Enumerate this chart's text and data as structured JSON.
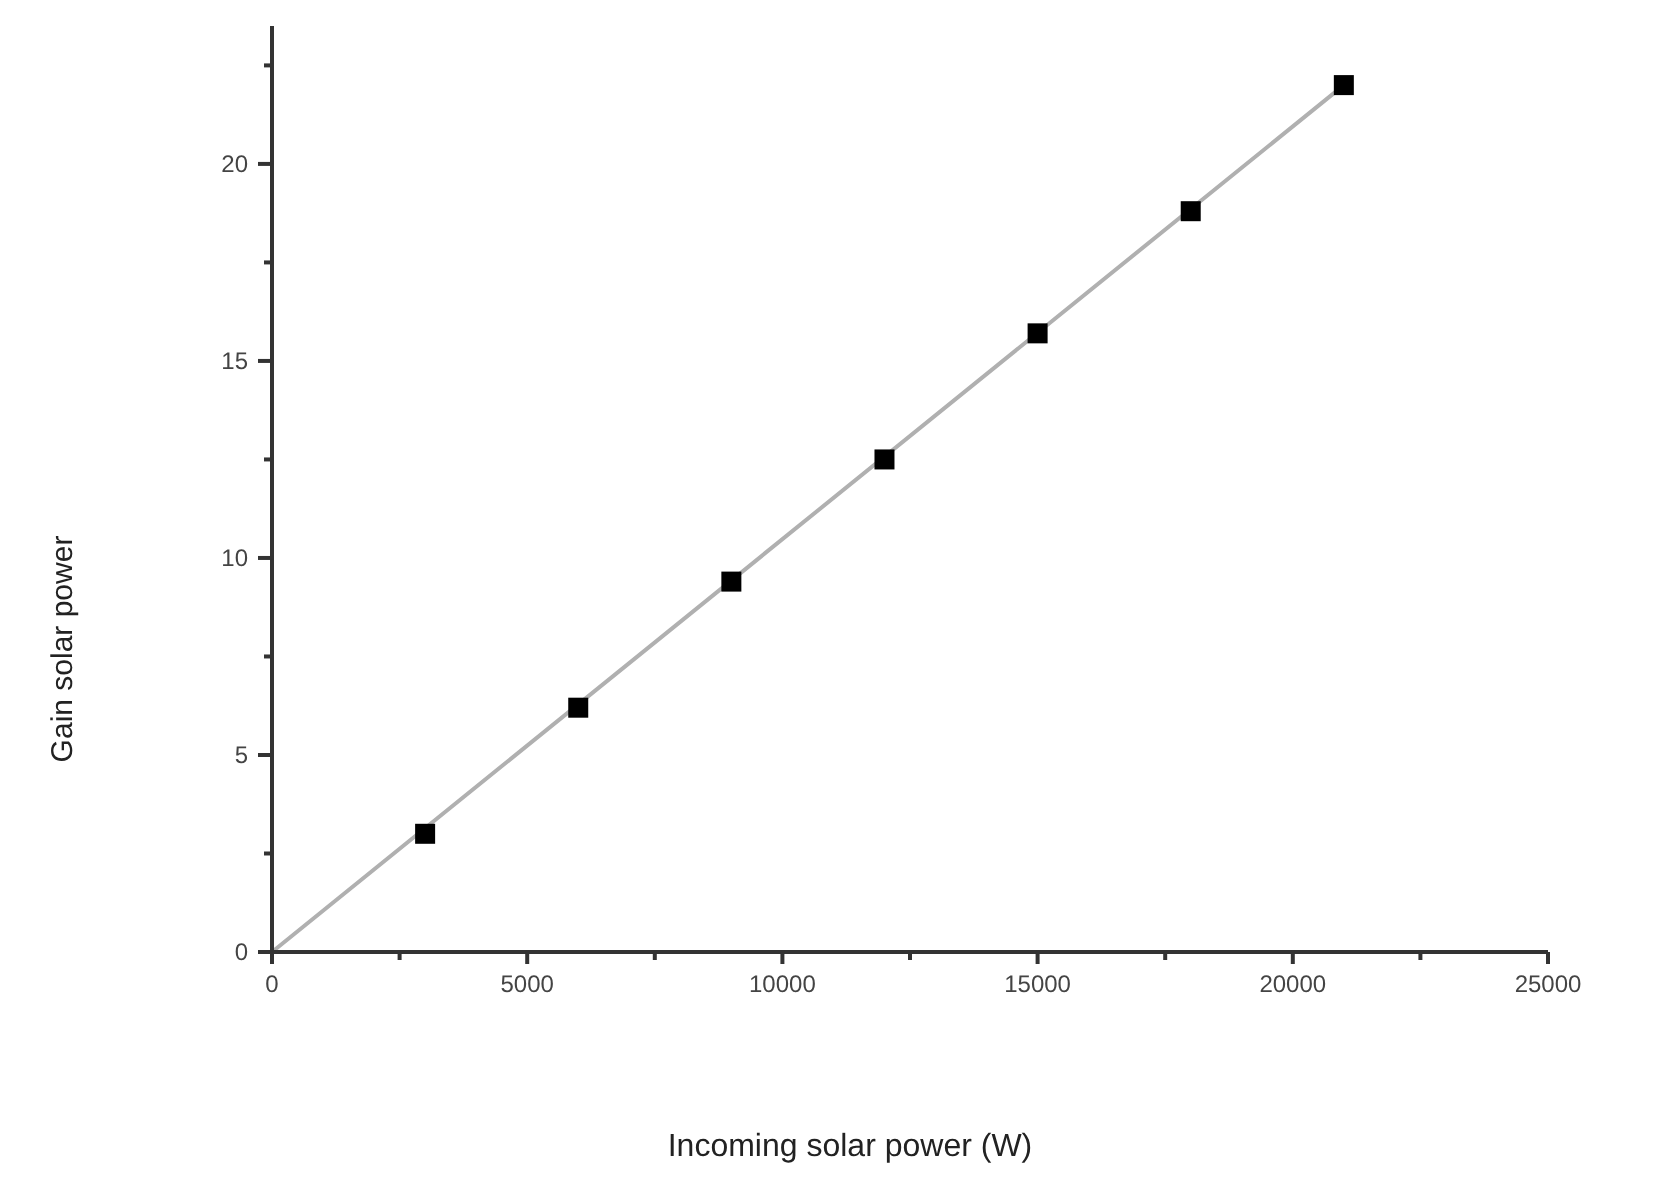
{
  "chart_data": {
    "type": "scatter",
    "xlabel": "Incoming solar power (W)",
    "ylabel": "Gain solar power",
    "xlim": [
      0,
      25000
    ],
    "ylim": [
      0,
      23.5
    ],
    "xticks": [
      0,
      {
        "value": 2500,
        "label": null
      },
      5000,
      {
        "value": 7500,
        "label": null
      },
      10000,
      {
        "value": 12500,
        "label": null
      },
      15000,
      {
        "value": 17500,
        "label": null
      },
      20000,
      {
        "value": 22500,
        "label": null
      },
      25000
    ],
    "yticks": [
      0,
      {
        "value": 2.5,
        "label": null
      },
      5,
      {
        "value": 7.5,
        "label": null
      },
      10,
      {
        "value": 12.5,
        "label": null
      },
      15,
      {
        "value": 17.5,
        "label": null
      },
      20,
      {
        "value": 22.5,
        "label": null
      }
    ],
    "grid": false,
    "series": [
      {
        "type": "line",
        "color": "#b0b0b0",
        "x": [
          0,
          21000
        ],
        "values": [
          0,
          22.0
        ],
        "marker": "none",
        "line_style": "solid"
      },
      {
        "color": "#000000",
        "x": [
          3000,
          6000,
          9000,
          12000,
          15000,
          18000,
          21000
        ],
        "values": [
          3.0,
          6.2,
          9.4,
          12.5,
          15.7,
          18.8,
          22.0
        ],
        "marker": "square"
      }
    ]
  }
}
